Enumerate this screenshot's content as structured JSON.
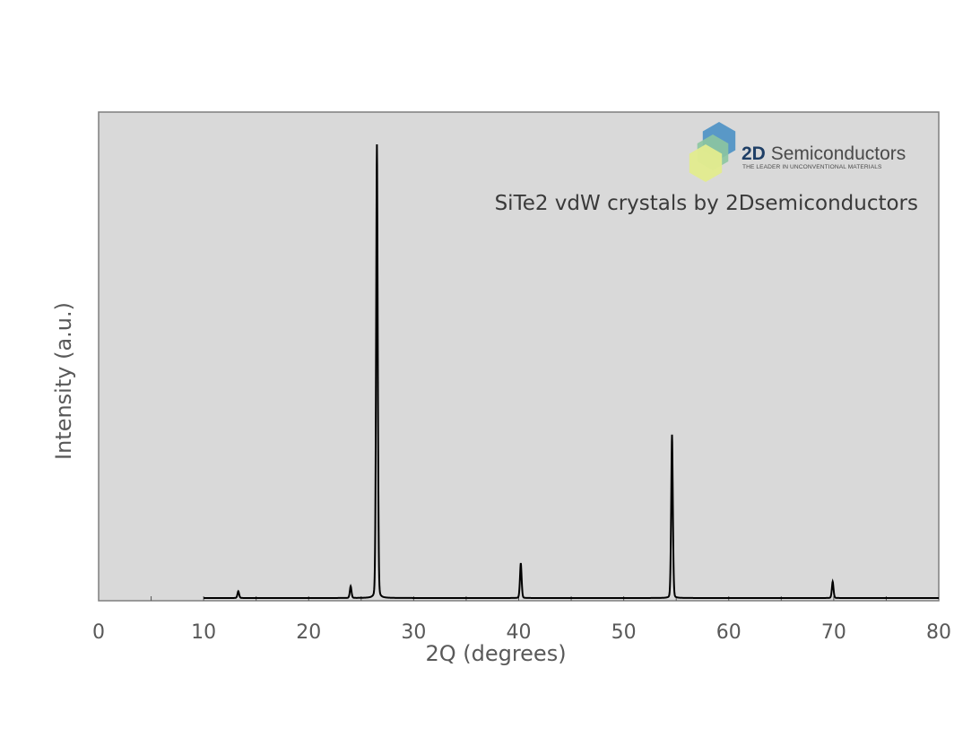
{
  "chart_data": {
    "type": "line",
    "title": "",
    "xlabel": "2Q (degrees)",
    "ylabel": "Intensity (a.u.)",
    "xlim": [
      0,
      80
    ],
    "ylim": [
      0,
      100
    ],
    "xticks": [
      0,
      10,
      20,
      30,
      40,
      50,
      60,
      70,
      80
    ],
    "grid": false,
    "background": "#d9d9d9",
    "line_color": "#000000",
    "annotation": "SiTe2 vdW crystals by 2Dsemiconductors",
    "series": [
      {
        "peaks": [
          {
            "x": 13.3,
            "y": 1.5
          },
          {
            "x": 24.0,
            "y": 2.6
          },
          {
            "x": 26.5,
            "y": 100
          },
          {
            "x": 40.2,
            "y": 7.7
          },
          {
            "x": 54.6,
            "y": 36
          },
          {
            "x": 69.9,
            "y": 3.6
          }
        ]
      }
    ]
  },
  "logo": {
    "name_bold": "2D",
    "name_rest": " Semiconductors",
    "tagline": "THE LEADER IN UNCONVENTIONAL MATERIALS",
    "colors": [
      "#4a90c4",
      "#8cc5a0",
      "#e3ec8e"
    ]
  }
}
